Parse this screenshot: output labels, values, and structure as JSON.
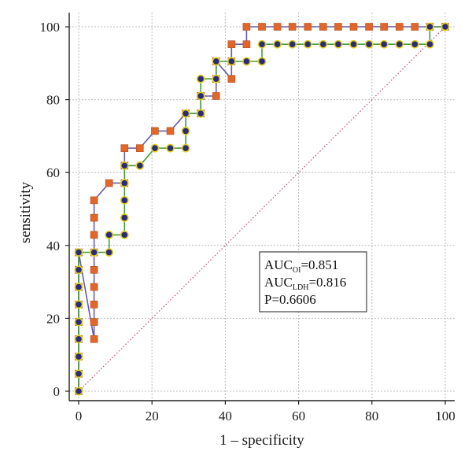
{
  "chart_data": {
    "type": "line",
    "xlabel": "1 – specificity",
    "ylabel": "sensitivity",
    "xlim": [
      0,
      100
    ],
    "ylim": [
      0,
      100
    ],
    "xticks": [
      "0",
      "20",
      "40",
      "60",
      "80",
      "100"
    ],
    "yticks": [
      "0",
      "20",
      "40",
      "60",
      "80",
      "100"
    ],
    "grid": true,
    "reference_line": {
      "from": [
        0,
        0
      ],
      "to": [
        100,
        100
      ],
      "color": "#c0506a",
      "style": "dotted"
    },
    "series": [
      {
        "marker": "square",
        "marker_color": "#e0662a",
        "line_color": "#6a5aa8",
        "points": [
          [
            0,
            0
          ],
          [
            0,
            4.8
          ],
          [
            0,
            9.5
          ],
          [
            0,
            14.3
          ],
          [
            0,
            19
          ],
          [
            0,
            23.8
          ],
          [
            0,
            28.6
          ],
          [
            0,
            33.3
          ],
          [
            0,
            38.1
          ],
          [
            4.2,
            14.3
          ],
          [
            4.2,
            19
          ],
          [
            4.2,
            23.8
          ],
          [
            4.2,
            28.6
          ],
          [
            4.2,
            33.3
          ],
          [
            4.2,
            38.1
          ],
          [
            4.2,
            42.9
          ],
          [
            4.2,
            47.6
          ],
          [
            4.2,
            52.4
          ],
          [
            8.3,
            57.1
          ],
          [
            12.5,
            57.1
          ],
          [
            12.5,
            61.9
          ],
          [
            12.5,
            66.7
          ],
          [
            16.7,
            66.7
          ],
          [
            20.8,
            71.4
          ],
          [
            25,
            71.4
          ],
          [
            29.2,
            76.2
          ],
          [
            33.3,
            76.2
          ],
          [
            33.3,
            81
          ],
          [
            37.5,
            81
          ],
          [
            37.5,
            85.7
          ],
          [
            37.5,
            90.5
          ],
          [
            41.7,
            85.7
          ],
          [
            41.7,
            90.5
          ],
          [
            41.7,
            95.2
          ],
          [
            45.8,
            95.2
          ],
          [
            45.8,
            100
          ],
          [
            50,
            100
          ],
          [
            54.2,
            100
          ],
          [
            58.3,
            100
          ],
          [
            62.5,
            100
          ],
          [
            66.7,
            100
          ],
          [
            70.8,
            100
          ],
          [
            75,
            100
          ],
          [
            79.2,
            100
          ],
          [
            83.3,
            100
          ],
          [
            87.5,
            100
          ],
          [
            91.7,
            100
          ],
          [
            95.8,
            100
          ],
          [
            100,
            100
          ]
        ]
      },
      {
        "marker": "circle",
        "marker_color": "#2b2b7a",
        "marker_edge": "#e0d020",
        "line_color": "#4a9a3a",
        "points": [
          [
            0,
            0
          ],
          [
            0,
            4.8
          ],
          [
            0,
            9.5
          ],
          [
            0,
            14.3
          ],
          [
            0,
            19
          ],
          [
            0,
            23.8
          ],
          [
            0,
            28.6
          ],
          [
            0,
            33.3
          ],
          [
            0,
            38.1
          ],
          [
            4.2,
            38.1
          ],
          [
            8.3,
            38.1
          ],
          [
            8.3,
            42.9
          ],
          [
            12.5,
            42.9
          ],
          [
            12.5,
            47.6
          ],
          [
            12.5,
            52.4
          ],
          [
            12.5,
            57.1
          ],
          [
            12.5,
            61.9
          ],
          [
            16.7,
            61.9
          ],
          [
            20.8,
            66.7
          ],
          [
            25,
            66.7
          ],
          [
            29.2,
            66.7
          ],
          [
            29.2,
            71.4
          ],
          [
            29.2,
            76.2
          ],
          [
            33.3,
            76.2
          ],
          [
            33.3,
            81
          ],
          [
            33.3,
            85.7
          ],
          [
            37.5,
            85.7
          ],
          [
            37.5,
            90.5
          ],
          [
            41.7,
            90.5
          ],
          [
            45.8,
            90.5
          ],
          [
            50,
            90.5
          ],
          [
            50,
            95.2
          ],
          [
            54.2,
            95.2
          ],
          [
            58.3,
            95.2
          ],
          [
            62.5,
            95.2
          ],
          [
            66.7,
            95.2
          ],
          [
            70.8,
            95.2
          ],
          [
            75,
            95.2
          ],
          [
            79.2,
            95.2
          ],
          [
            83.3,
            95.2
          ],
          [
            87.5,
            95.2
          ],
          [
            91.7,
            95.2
          ],
          [
            95.8,
            95.2
          ],
          [
            95.8,
            100
          ],
          [
            100,
            100
          ]
        ]
      }
    ],
    "annotation": {
      "lines": [
        {
          "main": "AUC",
          "sub": "OI",
          "rest": "=0.851"
        },
        {
          "main": "AUC",
          "sub": "LDH",
          "rest": "=0.816"
        },
        {
          "main": "P=0.6606",
          "sub": "",
          "rest": ""
        }
      ]
    }
  }
}
